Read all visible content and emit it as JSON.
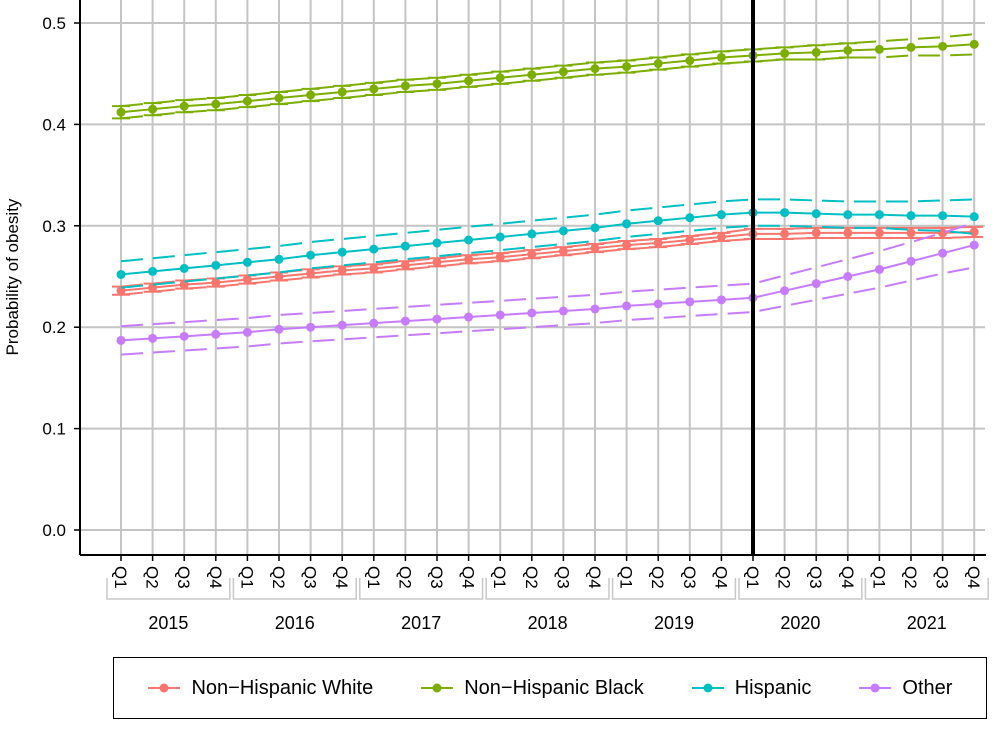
{
  "chart_data": {
    "type": "line",
    "xlabel": "",
    "ylabel": "Probability of obesity",
    "ylim": [
      0,
      0.5
    ],
    "yticks": [
      "0.0",
      "0.1",
      "0.2",
      "0.3",
      "0.4",
      "0.5"
    ],
    "ytick_values": [
      0,
      0.1,
      0.2,
      0.3,
      0.4,
      0.5
    ],
    "grid": true,
    "legend_position": "bottom",
    "quarters": [
      "Q1",
      "Q2",
      "Q3",
      "Q4"
    ],
    "years": [
      "2015",
      "2016",
      "2017",
      "2018",
      "2019",
      "2020",
      "2021"
    ],
    "vertical_line_at": "2020 Q1",
    "series": [
      {
        "name": "Non−Hispanic White",
        "color": "#F8766D",
        "values": [
          0.236,
          0.239,
          0.242,
          0.244,
          0.247,
          0.25,
          0.253,
          0.256,
          0.258,
          0.261,
          0.264,
          0.267,
          0.269,
          0.272,
          0.275,
          0.278,
          0.281,
          0.283,
          0.286,
          0.289,
          0.292,
          0.292,
          0.293,
          0.293,
          0.293,
          0.293,
          0.293,
          0.294
        ],
        "ci_halfwidth": [
          0.004,
          0.004,
          0.004,
          0.004,
          0.004,
          0.004,
          0.004,
          0.004,
          0.004,
          0.004,
          0.004,
          0.004,
          0.004,
          0.004,
          0.004,
          0.004,
          0.004,
          0.004,
          0.004,
          0.004,
          0.005,
          0.005,
          0.005,
          0.005,
          0.005,
          0.005,
          0.005,
          0.005
        ]
      },
      {
        "name": "Non−Hispanic Black",
        "color": "#7CAE00",
        "values": [
          0.412,
          0.415,
          0.418,
          0.42,
          0.423,
          0.426,
          0.429,
          0.432,
          0.435,
          0.438,
          0.44,
          0.443,
          0.446,
          0.449,
          0.452,
          0.455,
          0.457,
          0.46,
          0.463,
          0.466,
          0.468,
          0.47,
          0.471,
          0.473,
          0.474,
          0.476,
          0.477,
          0.479
        ],
        "ci_halfwidth": [
          0.006,
          0.006,
          0.006,
          0.006,
          0.006,
          0.006,
          0.006,
          0.006,
          0.006,
          0.006,
          0.006,
          0.006,
          0.006,
          0.006,
          0.006,
          0.006,
          0.006,
          0.006,
          0.006,
          0.006,
          0.006,
          0.006,
          0.007,
          0.007,
          0.008,
          0.008,
          0.009,
          0.01
        ]
      },
      {
        "name": "Hispanic",
        "color": "#00BFC4",
        "values": [
          0.252,
          0.255,
          0.258,
          0.261,
          0.264,
          0.267,
          0.271,
          0.274,
          0.277,
          0.28,
          0.283,
          0.286,
          0.289,
          0.292,
          0.295,
          0.298,
          0.302,
          0.305,
          0.308,
          0.311,
          0.313,
          0.313,
          0.312,
          0.311,
          0.311,
          0.31,
          0.31,
          0.309
        ],
        "ci_halfwidth": [
          0.013,
          0.013,
          0.013,
          0.013,
          0.013,
          0.013,
          0.013,
          0.013,
          0.013,
          0.013,
          0.013,
          0.013,
          0.013,
          0.013,
          0.013,
          0.013,
          0.013,
          0.013,
          0.013,
          0.013,
          0.013,
          0.013,
          0.013,
          0.013,
          0.013,
          0.014,
          0.015,
          0.017
        ]
      },
      {
        "name": "Other",
        "color": "#C77CFF",
        "values": [
          0.187,
          0.189,
          0.191,
          0.193,
          0.195,
          0.198,
          0.2,
          0.202,
          0.204,
          0.206,
          0.208,
          0.21,
          0.212,
          0.214,
          0.216,
          0.218,
          0.221,
          0.223,
          0.225,
          0.227,
          0.229,
          0.236,
          0.243,
          0.25,
          0.257,
          0.265,
          0.273,
          0.281
        ],
        "ci_halfwidth": [
          0.014,
          0.014,
          0.014,
          0.014,
          0.014,
          0.014,
          0.014,
          0.014,
          0.014,
          0.014,
          0.014,
          0.014,
          0.014,
          0.014,
          0.014,
          0.014,
          0.014,
          0.014,
          0.014,
          0.014,
          0.014,
          0.015,
          0.016,
          0.017,
          0.018,
          0.019,
          0.02,
          0.022
        ]
      }
    ]
  }
}
